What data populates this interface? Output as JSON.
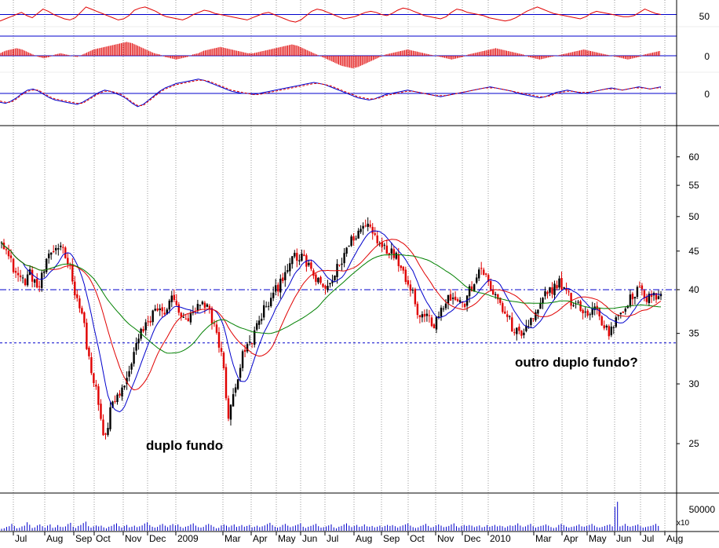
{
  "chart_data": [
    {
      "type": "line",
      "panel": "rsi-oscillator",
      "series": [
        {
          "values": [
            44,
            46,
            48,
            50,
            52,
            49,
            47,
            51,
            55,
            53,
            50,
            48,
            46,
            45,
            47,
            52,
            57,
            55,
            53,
            51,
            49,
            47,
            45,
            46,
            49,
            54,
            56,
            57,
            55,
            53,
            50,
            48,
            47,
            46,
            45,
            47,
            50,
            52,
            54,
            53,
            51,
            50,
            49,
            48,
            47,
            46,
            45,
            47,
            49,
            51,
            52,
            50,
            48,
            46,
            44,
            43,
            45,
            49,
            53,
            55,
            54,
            52,
            50,
            48,
            46,
            47,
            48,
            50,
            52,
            53,
            52,
            50,
            49,
            51,
            54,
            56,
            55,
            53,
            51,
            49,
            48,
            47,
            46,
            48,
            52,
            55,
            54,
            52,
            51,
            50,
            49,
            47,
            46,
            45,
            44,
            45,
            47,
            50,
            53,
            55,
            57,
            55,
            53,
            51,
            50,
            49,
            48,
            47,
            46,
            48,
            51,
            53,
            52,
            51,
            50,
            49,
            48,
            48,
            49,
            52,
            55,
            53,
            51,
            50
          ]
        }
      ],
      "color": "#e00000",
      "reference_lines": [
        {
          "value": 50,
          "color": "#0000cc"
        },
        {
          "value": 30,
          "color": "#0000cc"
        }
      ],
      "y_tick_labels": [
        "50"
      ]
    },
    {
      "type": "bar",
      "panel": "momentum-histogram",
      "values": [
        2,
        4,
        5,
        6,
        5,
        3,
        1,
        -1,
        -2,
        -1,
        1,
        2,
        1,
        0,
        -1,
        1,
        3,
        5,
        6,
        7,
        8,
        9,
        10,
        11,
        10,
        8,
        6,
        4,
        2,
        1,
        -1,
        -2,
        -3,
        -2,
        -1,
        1,
        2,
        4,
        5,
        6,
        7,
        6,
        5,
        4,
        3,
        2,
        2,
        3,
        4,
        5,
        6,
        7,
        8,
        9,
        8,
        6,
        4,
        2,
        0,
        -2,
        -4,
        -6,
        -8,
        -9,
        -10,
        -9,
        -7,
        -5,
        -3,
        -1,
        1,
        2,
        3,
        4,
        5,
        4,
        3,
        2,
        1,
        0,
        -1,
        -2,
        -3,
        -2,
        -1,
        1,
        2,
        3,
        4,
        5,
        6,
        5,
        4,
        3,
        2,
        1,
        -1,
        -2,
        -3,
        -2,
        -1,
        0,
        1,
        2,
        3,
        4,
        5,
        4,
        3,
        2,
        1,
        0,
        -1,
        -2,
        -3,
        -2,
        -1,
        1,
        2,
        3,
        4
      ],
      "color": "#e00000",
      "zero_line_color": "#0000cc",
      "y_tick_labels": [
        "0"
      ]
    },
    {
      "type": "line",
      "panel": "macd-oscillator",
      "series": [
        {
          "values": [
            -8,
            -9,
            -7,
            -4,
            0,
            3,
            4,
            2,
            -1,
            -4,
            -6,
            -7,
            -8,
            -9,
            -10,
            -8,
            -5,
            -2,
            1,
            3,
            2,
            0,
            -2,
            -5,
            -9,
            -12,
            -10,
            -6,
            -2,
            2,
            5,
            7,
            9,
            10,
            11,
            12,
            13,
            12,
            10,
            8,
            6,
            4,
            2,
            1,
            0,
            0,
            -1,
            0,
            1,
            2,
            3,
            4,
            5,
            6,
            7,
            8,
            9,
            10,
            9,
            8,
            6,
            4,
            2,
            0,
            -2,
            -4,
            -5,
            -6,
            -5,
            -3,
            -1,
            0,
            1,
            2,
            3,
            2,
            1,
            0,
            -1,
            -2,
            -3,
            -2,
            -1,
            0,
            1,
            2,
            3,
            4,
            5,
            6,
            5,
            4,
            3,
            2,
            0,
            -1,
            -2,
            -3,
            -4,
            -3,
            -1,
            1,
            2,
            3,
            2,
            1,
            0,
            1,
            2,
            3,
            4,
            5,
            4,
            3,
            4,
            5,
            6,
            5,
            4,
            5,
            6
          ]
        },
        {
          "values": [
            -7,
            -8,
            -8,
            -5,
            -1,
            2,
            3,
            3,
            0,
            -3,
            -5,
            -6,
            -7,
            -8,
            -9,
            -9,
            -6,
            -3,
            0,
            2,
            2,
            1,
            -1,
            -4,
            -8,
            -11,
            -11,
            -7,
            -3,
            1,
            4,
            6,
            8,
            9,
            10,
            11,
            12,
            12,
            11,
            9,
            7,
            5,
            3,
            2,
            1,
            0,
            -1,
            -1,
            0,
            1,
            2,
            3,
            4,
            5,
            6,
            7,
            8,
            9,
            9,
            8,
            7,
            5,
            3,
            1,
            -1,
            -3,
            -4,
            -5,
            -5,
            -4,
            -2,
            -1,
            0,
            1,
            2,
            2,
            1,
            0,
            -1,
            -2,
            -2,
            -2,
            -1,
            0,
            1,
            2,
            3,
            4,
            5,
            5,
            5,
            4,
            3,
            2,
            1,
            0,
            -1,
            -2,
            -3,
            -3,
            -2,
            0,
            1,
            2,
            2,
            1,
            1,
            1,
            2,
            3,
            4,
            4,
            4,
            3,
            4,
            5,
            5,
            5,
            4,
            5,
            5
          ]
        }
      ],
      "colors": [
        "#0000cc",
        "#e00000"
      ],
      "zero_line_color": "#0000cc",
      "y_tick_labels": [
        "0"
      ]
    },
    {
      "type": "candlestick",
      "panel": "price",
      "y_scale": "log",
      "ylim": [
        21.5,
        66
      ],
      "y_ticks": [
        25,
        30,
        35,
        40,
        45,
        50,
        55,
        60
      ],
      "x_labels": [
        "Jul",
        "Aug",
        "Sep",
        "Oct",
        "Nov",
        "Dec",
        "2009",
        "Mar",
        "Apr",
        "May",
        "Jun",
        "Jul",
        "Aug",
        "Sep",
        "Oct",
        "Nov",
        "Dec",
        "2010",
        "Mar",
        "Apr",
        "May",
        "Jun",
        "Jul",
        "Aug"
      ],
      "close_path": [
        47,
        44,
        42,
        41,
        42,
        40,
        43,
        45,
        46,
        44,
        40,
        37,
        32,
        29,
        25,
        28,
        29,
        30,
        33,
        35,
        36,
        38,
        37,
        39,
        38,
        36,
        37,
        38,
        38,
        36,
        33,
        27,
        30,
        33,
        34,
        36,
        38,
        39,
        41,
        43,
        44,
        44,
        43,
        41,
        40,
        41,
        43,
        45,
        47,
        48,
        49,
        47,
        46,
        45,
        44,
        42,
        40,
        37,
        37,
        36,
        38,
        39,
        39,
        38,
        40,
        42,
        42,
        40,
        38,
        37,
        35,
        35,
        36,
        37,
        39,
        40,
        41,
        40,
        38,
        38,
        37,
        38,
        36,
        35,
        37,
        38,
        39,
        40,
        39,
        39,
        40
      ],
      "moving_averages": [
        {
          "color": "#0000cc"
        },
        {
          "color": "#e00000"
        },
        {
          "color": "#008000"
        }
      ],
      "horizontal_lines": [
        {
          "value": 40,
          "style": "dash-dot",
          "color": "#0000cc"
        },
        {
          "value": 34,
          "style": "dashed",
          "color": "#0000cc"
        }
      ],
      "annotations": [
        {
          "text": "duplo fundo"
        },
        {
          "text": "outro duplo fundo?"
        }
      ]
    },
    {
      "type": "bar",
      "panel": "volume",
      "y_tick_labels": [
        "50000"
      ],
      "multiplier_label": "x10",
      "color": "#0000cc",
      "values": [
        5000,
        8000,
        12000,
        6000,
        9000,
        15000,
        7000,
        11000,
        8000,
        13000,
        6000,
        10000,
        9000,
        14000,
        7000,
        12000,
        16000,
        8000,
        11000,
        9000,
        6000,
        10000,
        13000,
        8000,
        12000,
        7000,
        9000,
        11000,
        15000,
        10000,
        8000,
        12000,
        9000,
        14000,
        11000,
        7000,
        10000,
        13000,
        9000,
        8000,
        12000,
        10000,
        6000,
        11000,
        9000,
        13000,
        8000,
        10000,
        12000,
        7000,
        9000,
        11000,
        14000,
        10000,
        8000,
        12000,
        9000,
        11000,
        13000,
        7000,
        10000,
        12000,
        8000,
        9000,
        11000,
        6000,
        10000,
        13000,
        9000,
        12000,
        8000,
        11000,
        10000,
        7000,
        9000,
        12000,
        10000,
        8000,
        11000,
        13000,
        9000,
        7000,
        10000,
        12000,
        8000,
        11000,
        9000,
        10000,
        13000,
        8000,
        12000,
        10000,
        9000,
        11000,
        7000,
        10000,
        12000,
        9000,
        8000,
        11000,
        10000,
        13000,
        9000,
        12000,
        8000,
        10000,
        11000,
        9000,
        7000,
        12000,
        10000,
        8000,
        9000,
        11000,
        10000,
        12000,
        9000,
        8000,
        10000,
        11000,
        60000,
        9000,
        12000,
        10000,
        11000,
        8000,
        9000,
        10000,
        12000
      ]
    }
  ],
  "colors": {
    "up_candle": "#000000",
    "down_candle": "#e00000",
    "grid": "#9a9a9a",
    "panel_border": "#000000"
  }
}
